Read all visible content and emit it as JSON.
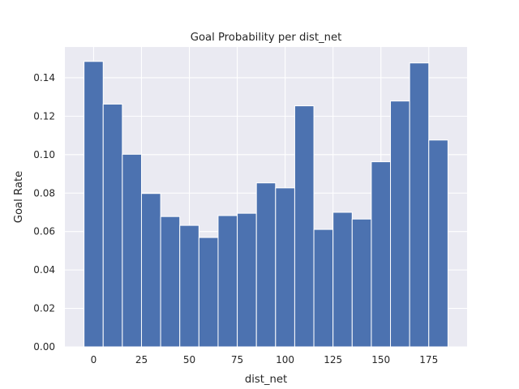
{
  "chart_data": {
    "type": "bar",
    "title": "Goal Probability per dist_net",
    "xlabel": "dist_net",
    "ylabel": "Goal Rate",
    "bin_width": 10,
    "x": [
      0,
      10,
      20,
      30,
      40,
      50,
      60,
      70,
      80,
      90,
      100,
      110,
      120,
      130,
      140,
      150,
      160,
      170,
      180
    ],
    "values": [
      0.1485,
      0.1263,
      0.1002,
      0.0798,
      0.0678,
      0.0632,
      0.0569,
      0.0683,
      0.0695,
      0.0853,
      0.0827,
      0.1254,
      0.0611,
      0.07,
      0.0665,
      0.0963,
      0.1279,
      0.1477,
      0.1076
    ],
    "xlim": [
      -15,
      195
    ],
    "ylim": [
      0,
      0.156
    ],
    "xticks": [
      0,
      25,
      50,
      75,
      100,
      125,
      150,
      175
    ],
    "yticks": [
      0.0,
      0.02,
      0.04,
      0.06,
      0.08,
      0.1,
      0.12,
      0.14
    ],
    "xtick_labels": [
      "0",
      "25",
      "50",
      "75",
      "100",
      "125",
      "150",
      "175"
    ],
    "ytick_labels": [
      "0.00",
      "0.02",
      "0.04",
      "0.06",
      "0.08",
      "0.10",
      "0.12",
      "0.14"
    ],
    "grid": true,
    "bar_color": "#4c72b0",
    "background_color": "#eaeaf2",
    "grid_color": "#ffffff"
  }
}
